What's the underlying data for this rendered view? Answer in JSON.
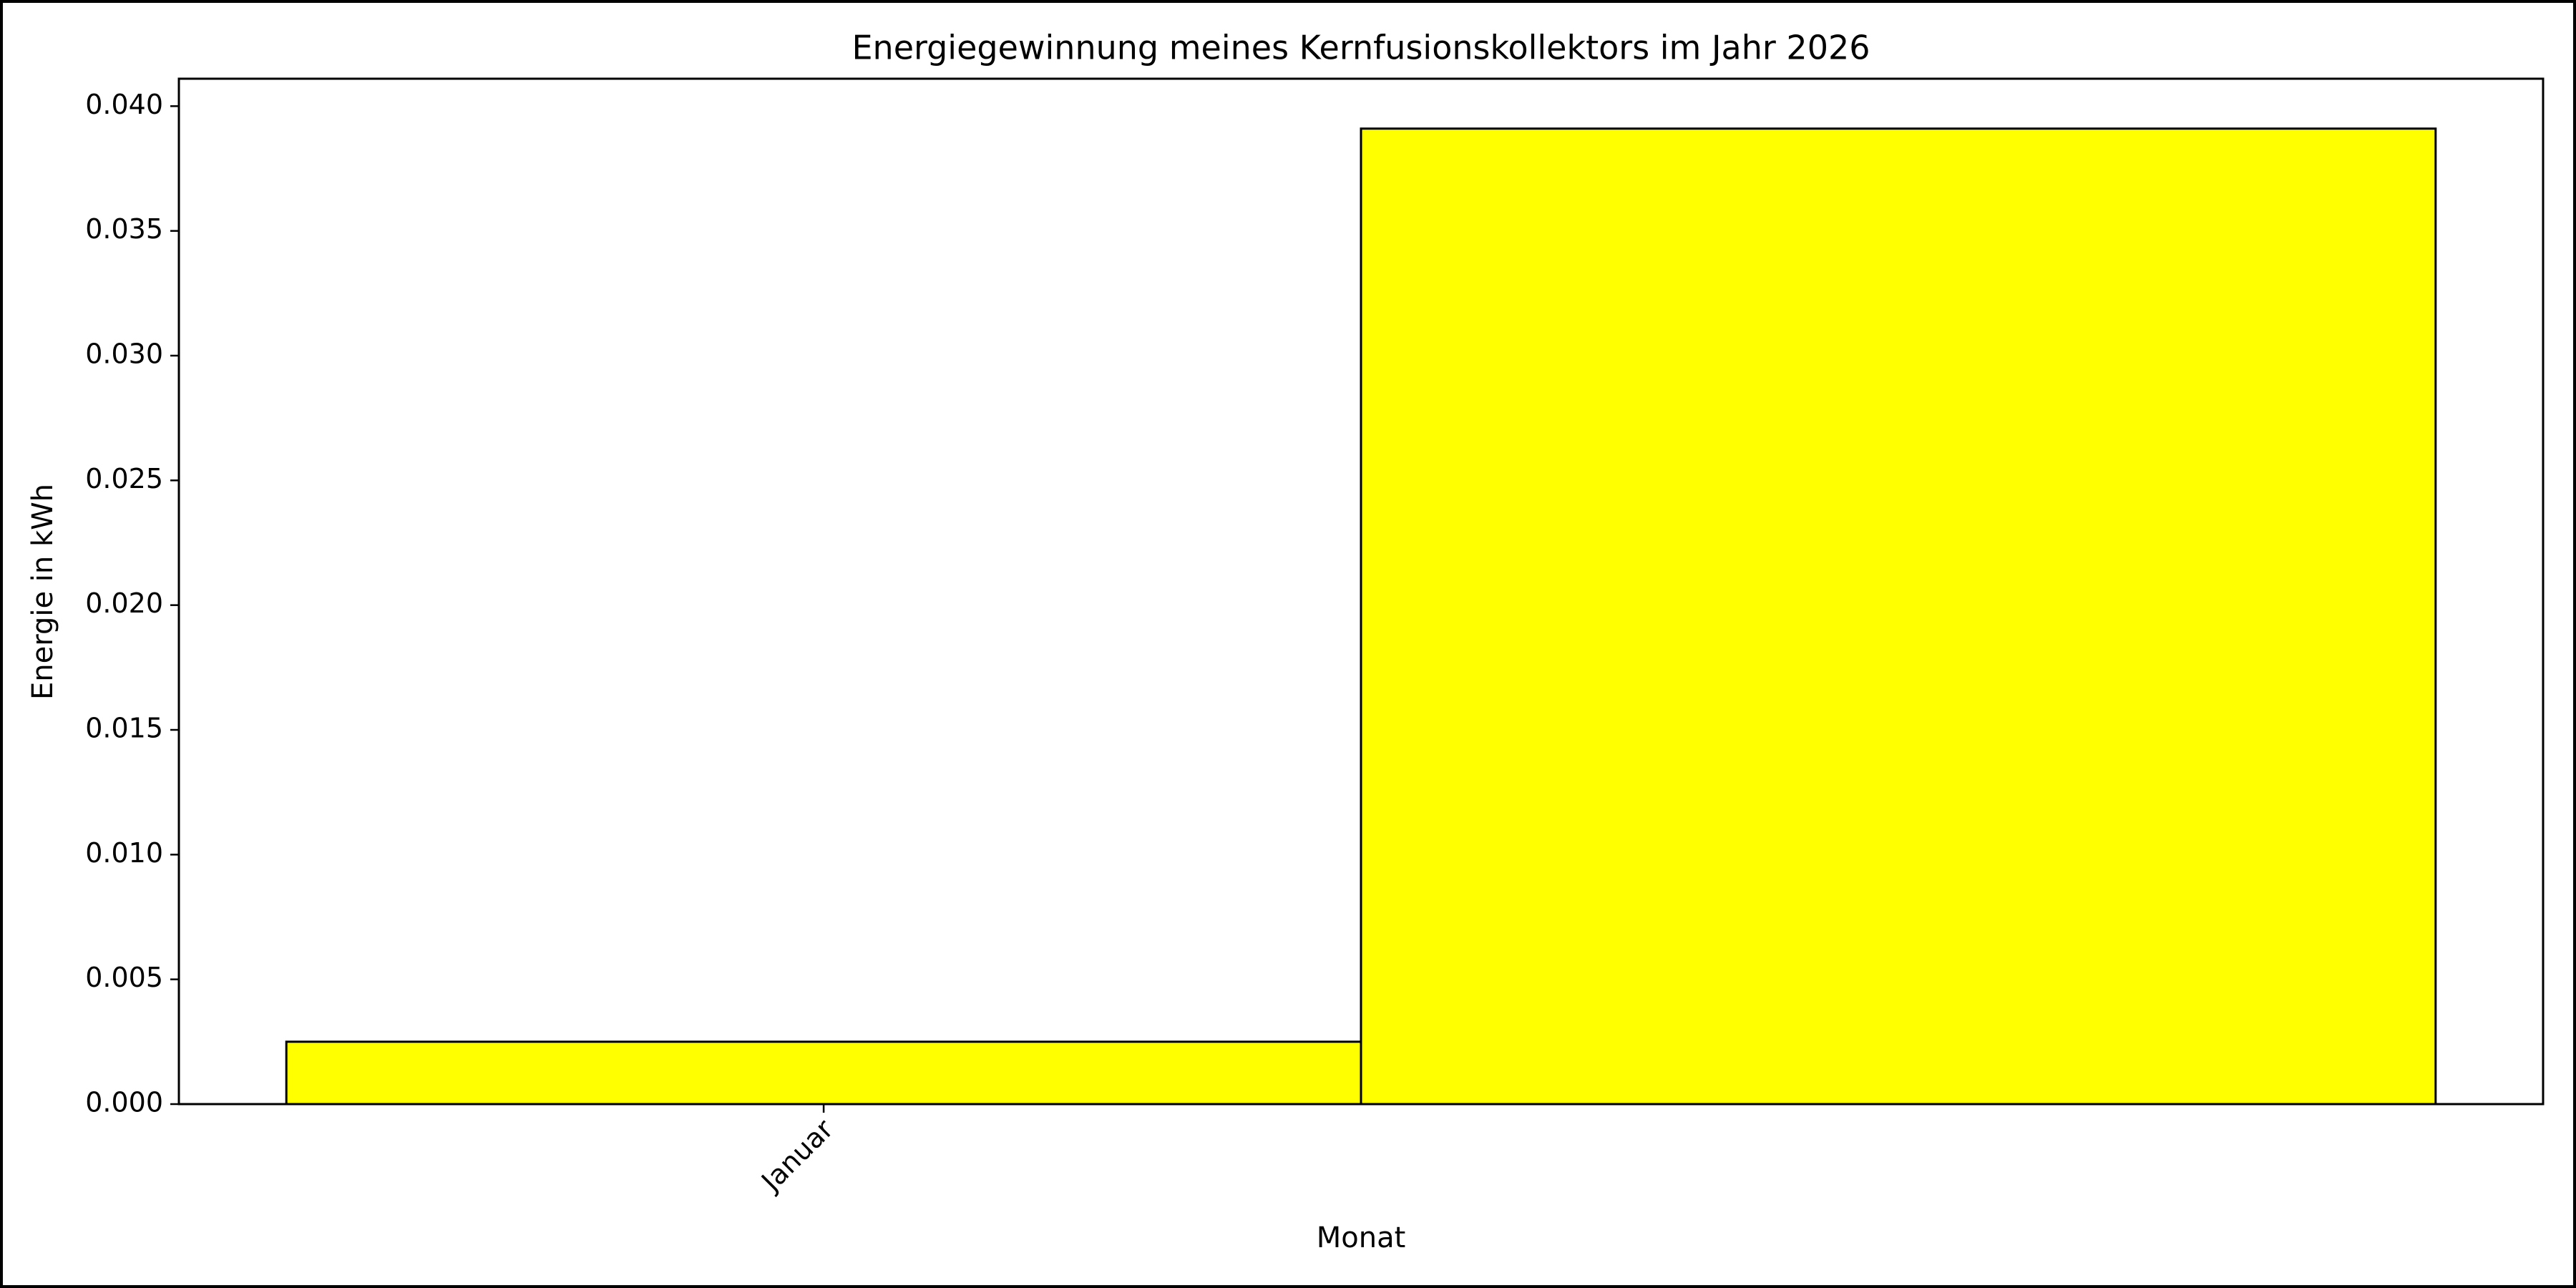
{
  "chart_data": {
    "type": "bar",
    "title": "Energiegewinnung meines Kernfusionskollektors im Jahr 2026",
    "x_label": "Monat",
    "y_label": "Energie in kWh",
    "categories": [
      "Januar",
      null
    ],
    "values": [
      0.0025,
      0.0391
    ],
    "color": "#ffff00",
    "edgecolor": "#000000",
    "ylim": [
      0,
      0.0411
    ],
    "yticks": [
      {
        "value": 0,
        "label": "0.000"
      },
      0.005,
      {
        "value": 0.01,
        "label": "0.010"
      },
      0.015,
      {
        "value": 0.02,
        "label": "0.020"
      },
      0.025,
      {
        "value": 0.03,
        "label": "0.030"
      },
      0.035,
      {
        "value": 0.04,
        "label": "0.040"
      }
    ],
    "grid": false
  }
}
